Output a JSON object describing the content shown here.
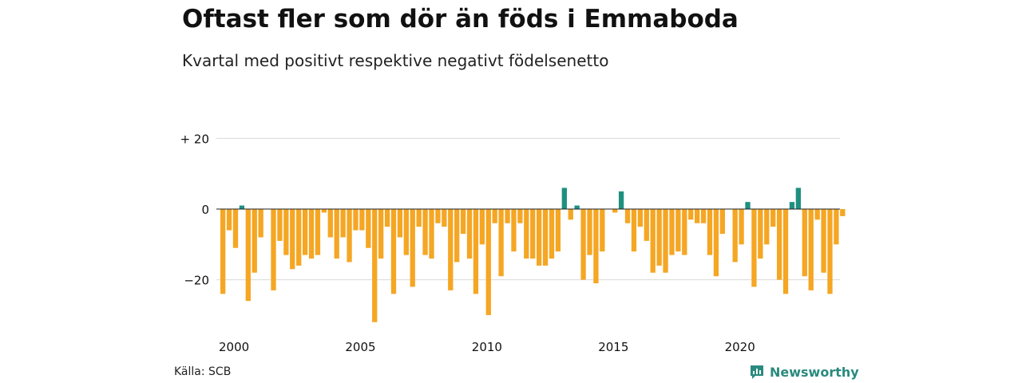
{
  "title": "Oftast fler som dör än föds i Emmaboda",
  "subtitle": "Kvartal med positivt respektive negativt födelsenetto",
  "source": "Källa: SCB",
  "brand": "Newsworthy",
  "colors": {
    "positive": "#1f9080",
    "negative": "#f5a623",
    "grid": "#d9d9d9",
    "zero": "#222222",
    "brand": "#2a8a7e"
  },
  "chart_data": {
    "type": "bar",
    "x_start": "2000 Q1",
    "ylim": [
      -32,
      20
    ],
    "yticks": [
      20,
      0,
      -20
    ],
    "ytick_labels": [
      "+ 20",
      "0",
      "−20"
    ],
    "xtick_labels": [
      "2000",
      "2005",
      "2010",
      "2015",
      "2020"
    ],
    "grid": true,
    "values": [
      -24,
      -6,
      -11,
      1,
      -26,
      -18,
      -8,
      0,
      -23,
      -9,
      -13,
      -17,
      -16,
      -13,
      -14,
      -13,
      -1,
      -8,
      -14,
      -8,
      -15,
      -6,
      -6,
      -11,
      -32,
      -14,
      -5,
      -24,
      -8,
      -13,
      -22,
      -5,
      -13,
      -14,
      -4,
      -5,
      -23,
      -15,
      -7,
      -14,
      -24,
      -10,
      -30,
      -4,
      -19,
      -4,
      -12,
      -4,
      -14,
      -14,
      -16,
      -16,
      -14,
      -12,
      6,
      -3,
      1,
      -20,
      -13,
      -21,
      -12,
      0,
      -1,
      5,
      -4,
      -12,
      -5,
      -9,
      -18,
      -16,
      -18,
      -13,
      -12,
      -13,
      -3,
      -4,
      -4,
      -13,
      -19,
      -7,
      0,
      -15,
      -10,
      2,
      -22,
      -14,
      -10,
      -5,
      -20,
      -24,
      2,
      6,
      -19,
      -23,
      -3,
      -18,
      -24,
      -10,
      -2
    ]
  }
}
